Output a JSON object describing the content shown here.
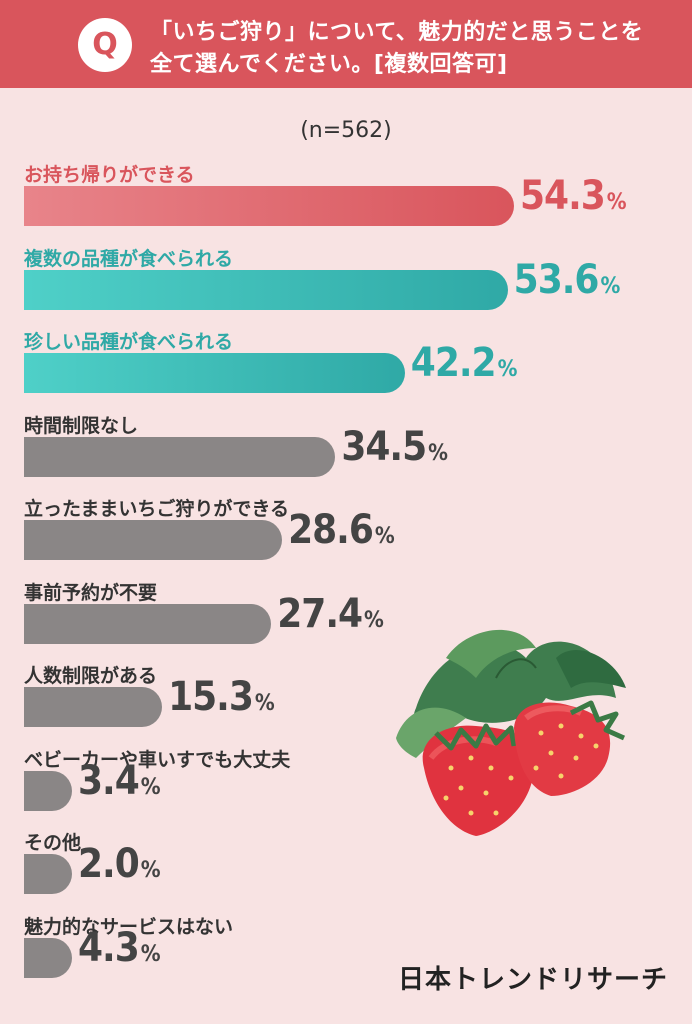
{
  "header": {
    "badge": "Q",
    "question_line1": "「いちご狩り」について、魅力的だと思うことを",
    "question_line2": "全て選んでください。[複数回答可]"
  },
  "sample_size": "(n=562)",
  "brand": "日本トレンドリサーチ",
  "colors": {
    "background": "#f8e3e3",
    "header": "#d9555c",
    "first": "#d9555c",
    "teal": "#2fa9a6",
    "gray": "#8a8686",
    "label_red": "#d9555c",
    "label_teal": "#2fa9a6",
    "label_dark": "#333333"
  },
  "chart_data": {
    "type": "bar",
    "orientation": "horizontal",
    "unit": "%",
    "categories": [
      "お持ち帰りができる",
      "複数の品種が食べられる",
      "珍しい品種が食べられる",
      "時間制限なし",
      "立ったままいちご狩りができる",
      "事前予約が不要",
      "人数制限がある",
      "ベビーカーや車いすでも大丈夫",
      "その他",
      "魅力的なサービスはない"
    ],
    "values": [
      54.3,
      53.6,
      42.2,
      34.5,
      28.6,
      27.4,
      15.3,
      3.4,
      2.0,
      4.3
    ],
    "value_labels": [
      "54.3",
      "53.6",
      "42.2",
      "34.5",
      "28.6",
      "27.4",
      "15.3",
      "3.4",
      "2.0",
      "4.3"
    ],
    "highlight": [
      "red",
      "teal",
      "teal",
      "gray",
      "gray",
      "gray",
      "gray",
      "gray",
      "gray",
      "gray"
    ]
  }
}
